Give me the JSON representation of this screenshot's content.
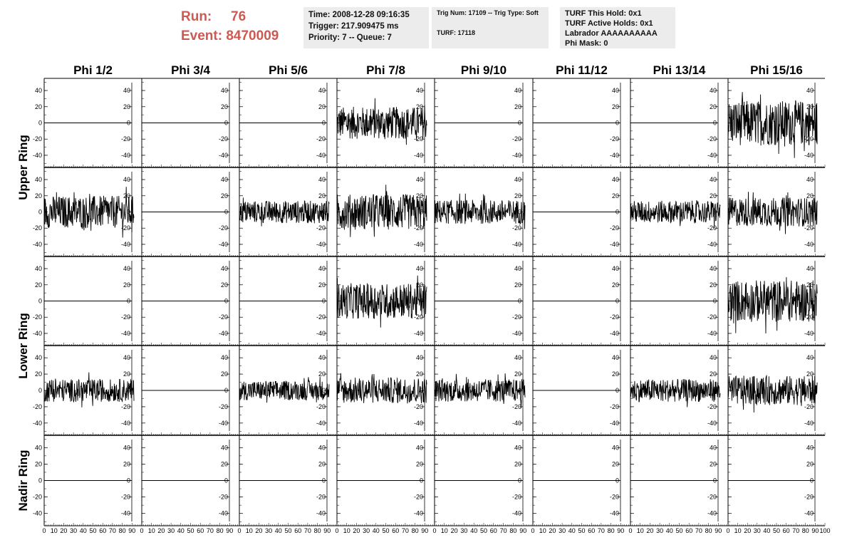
{
  "header": {
    "run_label": "Run:",
    "run_value": "76",
    "event_label": "Event:",
    "event_value": "8470009",
    "accent_color": "#cc5a52"
  },
  "info_panels": {
    "time": {
      "line1": "Time: 2008-12-28 09:16:35",
      "line2": "Trigger: 217.909475 ms",
      "line3": "Priority: 7 -- Queue: 7"
    },
    "trig": {
      "line1": "Trig Num: 17109 -- Trig Type: Soft",
      "line2": "TURF: 17118"
    },
    "turf": {
      "line1": "TURF This Hold: 0x1",
      "line2": "TURF Active Holds: 0x1",
      "line3": "Labrador AAAAAAAAAA",
      "line4": "Phi Mask: 0"
    }
  },
  "chart_data": {
    "type": "line",
    "columns": [
      "Phi 1/2",
      "Phi 3/4",
      "Phi 5/6",
      "Phi 7/8",
      "Phi 9/10",
      "Phi 11/12",
      "Phi 13/14",
      "Phi 15/16"
    ],
    "row_groups": [
      {
        "label": "Upper Ring",
        "rows": [
          0,
          1
        ]
      },
      {
        "label": "Lower Ring",
        "rows": [
          2,
          3
        ]
      },
      {
        "label": "Nadir Ring",
        "rows": [
          4
        ]
      }
    ],
    "xlim": [
      0,
      100
    ],
    "ylim": [
      -55,
      55
    ],
    "x_ticks": [
      0,
      10,
      20,
      30,
      40,
      50,
      60,
      70,
      80,
      90,
      100
    ],
    "y_ticks": [
      40,
      20,
      0,
      -20,
      -40
    ],
    "n_samples": 256,
    "active_amplitude": [
      [
        0,
        0,
        0,
        20,
        0,
        0,
        0,
        28
      ],
      [
        20,
        0,
        14,
        22,
        15,
        0,
        14,
        18
      ],
      [
        0,
        0,
        0,
        22,
        0,
        0,
        0,
        26
      ],
      [
        14,
        0,
        12,
        16,
        14,
        0,
        14,
        18
      ],
      [
        0,
        0,
        0,
        0,
        0,
        0,
        0,
        0
      ]
    ]
  }
}
